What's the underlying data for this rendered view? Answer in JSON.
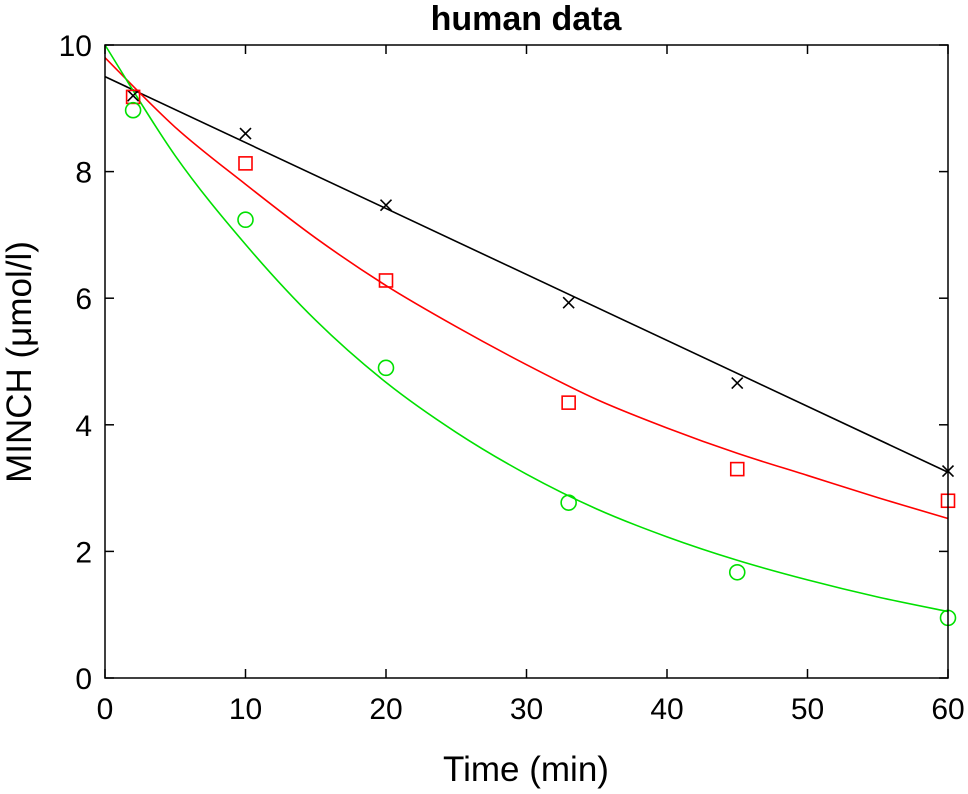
{
  "chart_data": {
    "type": "scatter",
    "title": "human data",
    "xlabel": "Time (min)",
    "ylabel": "MINCH (μmol/l)",
    "xlim": [
      0,
      60
    ],
    "ylim": [
      0,
      10
    ],
    "xticks": [
      "0",
      "10",
      "20",
      "30",
      "40",
      "50",
      "60"
    ],
    "yticks": [
      "0",
      "2",
      "4",
      "6",
      "8",
      "10"
    ],
    "grid": false,
    "legend": "none",
    "series": [
      {
        "color": "#000000",
        "marker": "x",
        "points": {
          "x": [
            2,
            10,
            20,
            33,
            45,
            60
          ],
          "y": [
            9.2,
            8.6,
            7.47,
            5.93,
            4.66,
            3.27
          ]
        },
        "fit": {
          "x": [
            0,
            60
          ],
          "y": [
            9.5,
            3.25
          ]
        }
      },
      {
        "color": "#ff0000",
        "marker": "square",
        "points": {
          "x": [
            2,
            10,
            20,
            33,
            45,
            60
          ],
          "y": [
            9.18,
            8.13,
            6.28,
            4.35,
            3.3,
            2.8
          ]
        },
        "fit": {
          "x": [
            0,
            5,
            10,
            15,
            20,
            25,
            30,
            35,
            40,
            45,
            50,
            55,
            60
          ],
          "y": [
            9.8,
            8.7,
            7.8,
            6.95,
            6.2,
            5.55,
            4.95,
            4.4,
            3.95,
            3.55,
            3.2,
            2.85,
            2.52
          ]
        }
      },
      {
        "color": "#00e000",
        "marker": "circle",
        "points": {
          "x": [
            2,
            10,
            20,
            33,
            45,
            60
          ],
          "y": [
            8.97,
            7.24,
            4.9,
            2.77,
            1.67,
            0.95
          ]
        },
        "fit": {
          "x": [
            0,
            5,
            10,
            15,
            20,
            25,
            30,
            35,
            40,
            45,
            50,
            55,
            60
          ],
          "y": [
            10.0,
            8.25,
            6.85,
            5.65,
            4.67,
            3.88,
            3.22,
            2.67,
            2.23,
            1.86,
            1.55,
            1.28,
            1.05
          ]
        }
      }
    ]
  }
}
